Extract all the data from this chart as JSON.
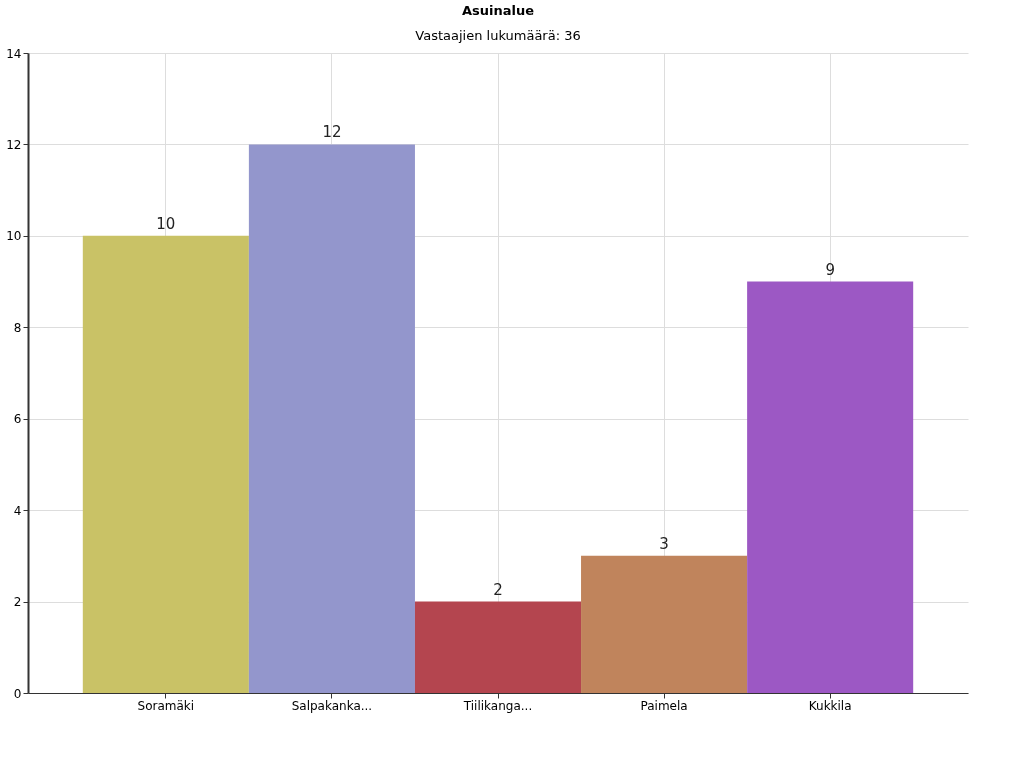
{
  "chart_data": {
    "type": "bar",
    "title": "Asuinalue",
    "subtitle": "Vastaajien lukumäärä: 36",
    "categories": [
      "Soramäki",
      "Salpakanka...",
      "Tiilikanga...",
      "Paimela",
      "Kukkila"
    ],
    "values": [
      10,
      12,
      2,
      3,
      9
    ],
    "colors": [
      "#c9c266",
      "#9396cc",
      "#b4454f",
      "#c0845c",
      "#9c58c4"
    ],
    "ylim": [
      0,
      14
    ],
    "yticks": [
      0,
      2,
      4,
      6,
      8,
      10,
      12,
      14
    ],
    "grid": true,
    "data_labels": true
  }
}
